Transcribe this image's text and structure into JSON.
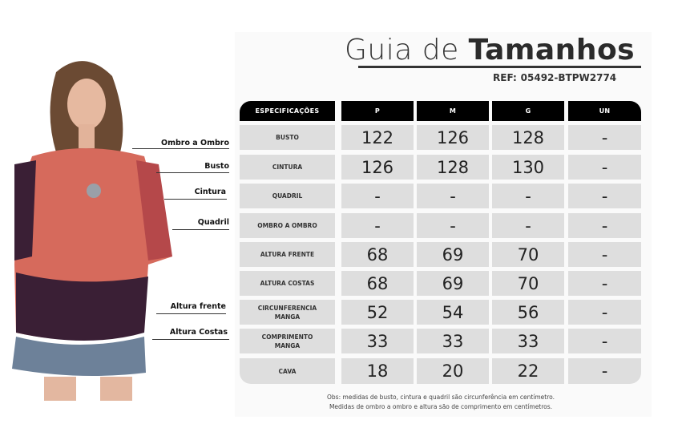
{
  "title": {
    "light": "Guia de",
    "bold": "Tamanhos"
  },
  "ref": {
    "label": "REF:",
    "code": "05492-BTPW2774"
  },
  "table": {
    "headers": [
      "ESPECIFICAÇÕES",
      "P",
      "M",
      "G",
      "UN"
    ],
    "rows": [
      {
        "spec": "BUSTO",
        "values": [
          "122",
          "126",
          "128",
          "-"
        ]
      },
      {
        "spec": "CINTURA",
        "values": [
          "126",
          "128",
          "130",
          "-"
        ]
      },
      {
        "spec": "QUADRIL",
        "values": [
          "-",
          "-",
          "-",
          "-"
        ]
      },
      {
        "spec": "OMBRO A OMBRO",
        "values": [
          "-",
          "-",
          "-",
          "-"
        ]
      },
      {
        "spec": "ALTURA FRENTE",
        "values": [
          "68",
          "69",
          "70",
          "-"
        ]
      },
      {
        "spec": "ALTURA COSTAS",
        "values": [
          "68",
          "69",
          "70",
          "-"
        ]
      },
      {
        "spec": "CIRCUNFERENCIA MANGA",
        "values": [
          "52",
          "54",
          "56",
          "-"
        ]
      },
      {
        "spec": "COMPRIMENTO MANGA",
        "values": [
          "33",
          "33",
          "33",
          "-"
        ]
      },
      {
        "spec": "CAVA",
        "values": [
          "18",
          "20",
          "22",
          "-"
        ]
      }
    ]
  },
  "note": [
    "Obs: medidas de busto, cintura e quadril são circunferência em centímetro.",
    "Medidas de ombro a ombro e altura são de comprimento em centímetros."
  ],
  "measure_labels": [
    "Ombro a Ombro",
    "Busto",
    "Cintura",
    "Quadril",
    "Altura frente",
    "Altura Costas"
  ]
}
